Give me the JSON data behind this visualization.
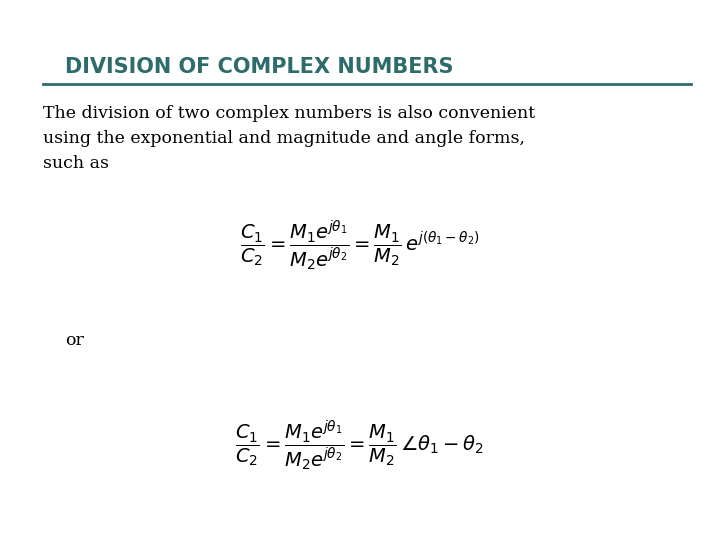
{
  "title": "DIVISION OF COMPLEX NUMBERS",
  "title_color": "#2E6B6B",
  "background_color": "#FFFFFF",
  "border_color": "#4A8C8C",
  "body_text": "The division of two complex numbers is also convenient\nusing the exponential and magnitude and angle forms,\nsuch as",
  "or_text": "or",
  "eq1": "\\frac{C_1}{C_2} = \\frac{M_1 e^{j\\theta_1}}{M_2 e^{j\\theta_2}} = \\frac{M_1}{M_2}\\, e^{j(\\theta_1 - \\theta_2)}",
  "eq2": "\\frac{C_1}{C_2} = \\frac{M_1 e^{j\\theta_1}}{M_2 e^{j\\theta_2}} = \\frac{M_1}{M_2}\\, \\angle\\theta_1 - \\theta_2",
  "fig_width": 7.2,
  "fig_height": 5.4,
  "dpi": 100
}
